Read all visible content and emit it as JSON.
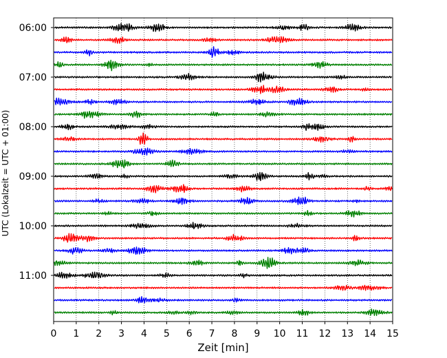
{
  "chart_data": {
    "type": "line",
    "title": "",
    "xlabel": "Zeit  [min]",
    "ylabel": "UTC (Lokalzeit = UTC + 01:00)",
    "xlim": [
      0,
      15
    ],
    "x_ticks": [
      "0",
      "1",
      "2",
      "3",
      "4",
      "5",
      "6",
      "7",
      "8",
      "9",
      "10",
      "11",
      "12",
      "13",
      "14",
      "15"
    ],
    "y_tick_labels": [
      "06:00",
      "07:00",
      "08:00",
      "09:00",
      "10:00",
      "11:00"
    ],
    "traces_per_hour": 4,
    "trace_count": 24,
    "trace_colors": [
      "#000000",
      "#ff0000",
      "#0000ff",
      "#008000"
    ],
    "grid": "vertical dotted at each minute",
    "legend": "none",
    "series_description": "Helicorder seismogram: 24 traces of 15 minutes each, 06:00 to 11:45 UTC, colors cycling black, red, blue, green"
  }
}
